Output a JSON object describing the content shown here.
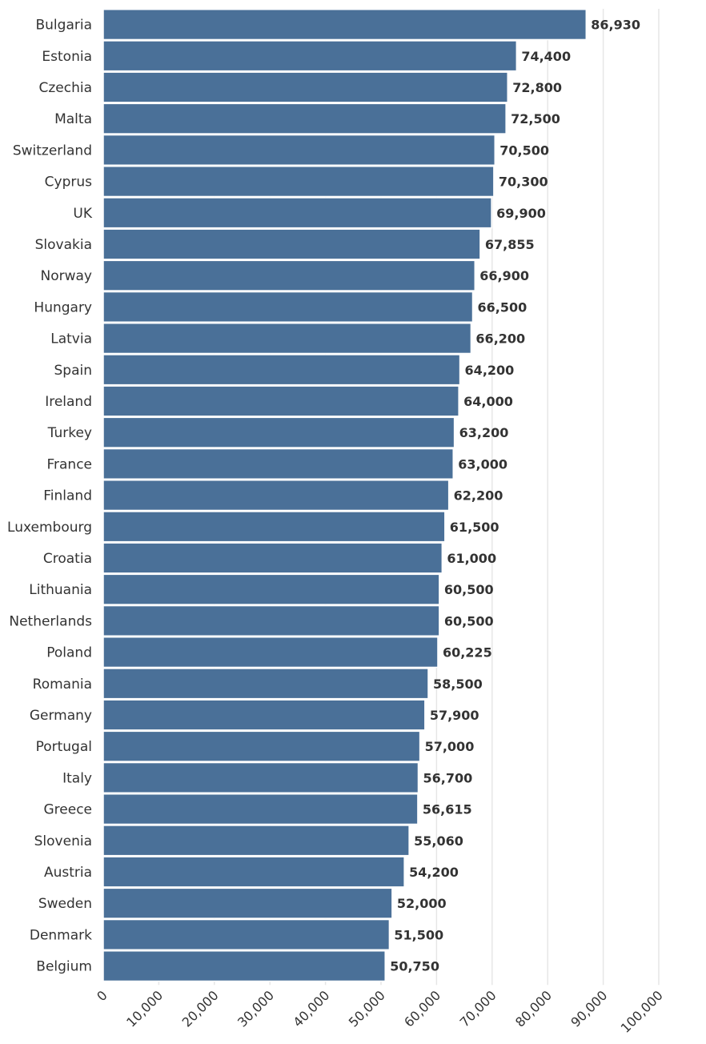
{
  "chart_data": {
    "type": "bar",
    "orientation": "horizontal",
    "title": "",
    "xlabel": "",
    "ylabel": "",
    "categories": [
      "Bulgaria",
      "Estonia",
      "Czechia",
      "Malta",
      "Switzerland",
      "Cyprus",
      "UK",
      "Slovakia",
      "Norway",
      "Hungary",
      "Latvia",
      "Spain",
      "Ireland",
      "Turkey",
      "France",
      "Finland",
      "Luxembourg",
      "Croatia",
      "Lithuania",
      "Netherlands",
      "Poland",
      "Romania",
      "Germany",
      "Portugal",
      "Italy",
      "Greece",
      "Slovenia",
      "Austria",
      "Sweden",
      "Denmark",
      "Belgium"
    ],
    "values": [
      86930,
      74400,
      72800,
      72500,
      70500,
      70300,
      69900,
      67855,
      66900,
      66500,
      66200,
      64200,
      64000,
      63200,
      63000,
      62200,
      61500,
      61000,
      60500,
      60500,
      60225,
      58500,
      57900,
      57000,
      56700,
      56615,
      55060,
      54200,
      52000,
      51500,
      50750
    ],
    "value_labels": [
      "86,930",
      "74,400",
      "72,800",
      "72,500",
      "70,500",
      "70,300",
      "69,900",
      "67,855",
      "66,900",
      "66,500",
      "66,200",
      "64,200",
      "64,000",
      "63,200",
      "63,000",
      "62,200",
      "61,500",
      "61,000",
      "60,500",
      "60,500",
      "60,225",
      "58,500",
      "57,900",
      "57,000",
      "56,700",
      "56,615",
      "55,060",
      "54,200",
      "52,000",
      "51,500",
      "50,750"
    ],
    "xlim": [
      0,
      100000
    ],
    "x_ticks": [
      0,
      10000,
      20000,
      30000,
      40000,
      50000,
      60000,
      70000,
      80000,
      90000,
      100000
    ],
    "x_tick_labels": [
      "0",
      "10,000",
      "20,000",
      "30,000",
      "40,000",
      "50,000",
      "60,000",
      "70,000",
      "80,000",
      "90,000",
      "100,000"
    ],
    "grid": true,
    "legend": "none",
    "bar_color": "#4a7098",
    "grid_color": "#e6e6e6",
    "text_color": "#333333"
  }
}
